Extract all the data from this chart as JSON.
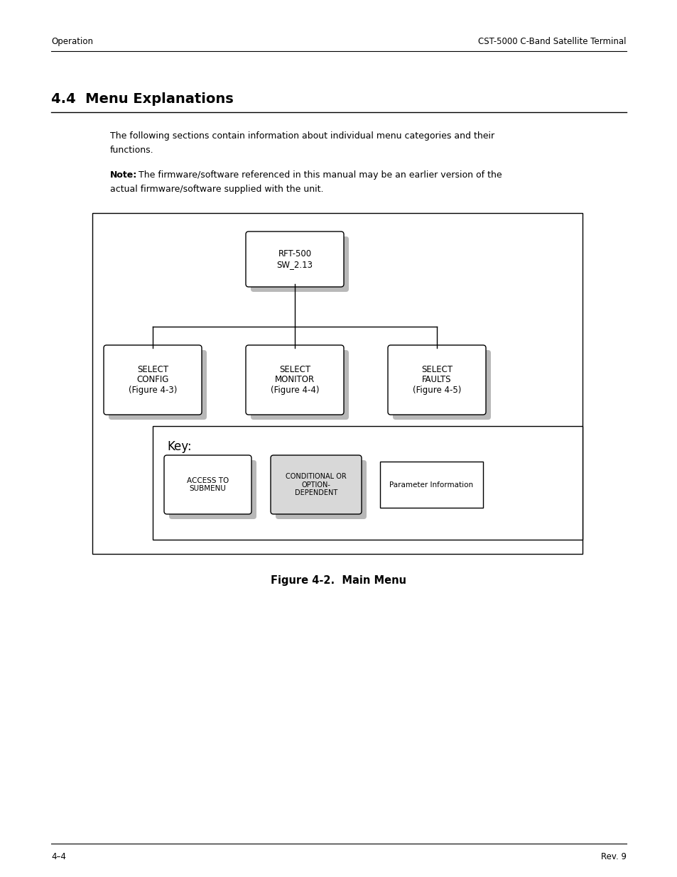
{
  "page_header_left": "Operation",
  "page_header_right": "CST-5000 C-Band Satellite Terminal",
  "section_title": "4.4  Menu Explanations",
  "para1_line1": "The following sections contain information about individual menu categories and their",
  "para1_line2": "functions.",
  "note_bold": "Note:",
  "note_text": " The firmware/software referenced in this manual may be an earlier version of the",
  "note_text2": "actual firmware/software supplied with the unit.",
  "root_node": "RFT-500\nSW_2.13",
  "child_nodes": [
    "SELECT\nCONFIG\n(Figure 4-3)",
    "SELECT\nMONITOR\n(Figure 4-4)",
    "SELECT\nFAULTS\n(Figure 4-5)"
  ],
  "key_label": "Key:",
  "key_box1": "ACCESS TO\nSUBMENU",
  "key_box2": "CONDITIONAL OR\nOPTION-\nDEPENDENT",
  "key_box3": "Parameter Information",
  "figure_caption": "Figure 4-2.  Main Menu",
  "footer_left": "4–4",
  "footer_right": "Rev. 9",
  "bg_color": "#ffffff",
  "text_color": "#000000",
  "shadow_color": "#b8b8b8",
  "box_facecolor": "#ffffff",
  "box_edgecolor": "#000000",
  "gray_fill": "#d8d8d8"
}
